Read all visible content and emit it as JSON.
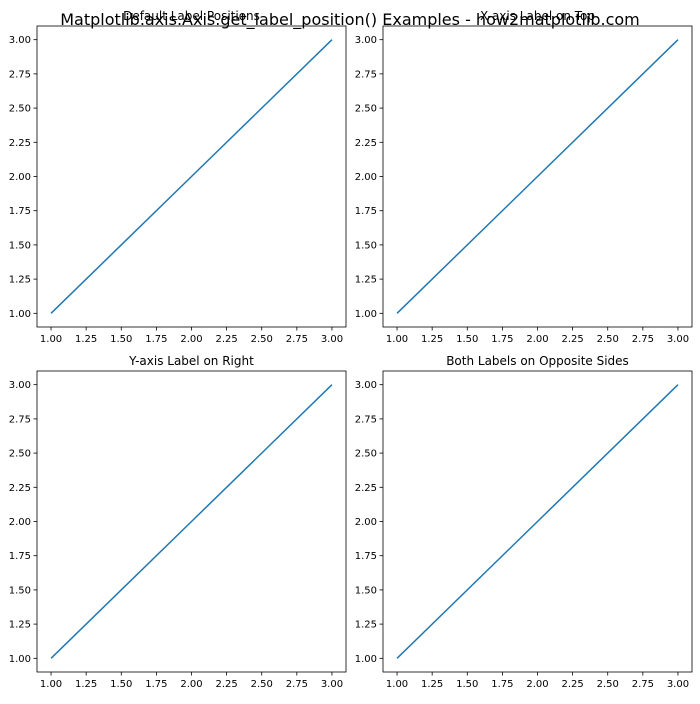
{
  "figure": {
    "suptitle": "Matplotlib.axis.Axis.get_label_position() Examples - how2matplotlib.com"
  },
  "chart_data": [
    {
      "type": "line",
      "title": "Default Label Positions",
      "x": [
        1,
        2,
        3
      ],
      "series": [
        {
          "values": [
            1,
            2,
            3
          ],
          "color": "#1f77b4"
        }
      ],
      "xlim": [
        0.9,
        3.1
      ],
      "ylim": [
        0.9,
        3.1
      ],
      "xticks": [
        1.0,
        1.25,
        1.5,
        1.75,
        2.0,
        2.25,
        2.5,
        2.75,
        3.0
      ],
      "yticks": [
        1.0,
        1.25,
        1.5,
        1.75,
        2.0,
        2.25,
        2.5,
        2.75,
        3.0
      ],
      "xticklabels": [
        "1.00",
        "1.25",
        "1.50",
        "1.75",
        "2.00",
        "2.25",
        "2.50",
        "2.75",
        "3.00"
      ],
      "yticklabels": [
        "1.00",
        "1.25",
        "1.50",
        "1.75",
        "2.00",
        "2.25",
        "2.50",
        "2.75",
        "3.00"
      ],
      "grid": false
    },
    {
      "type": "line",
      "title": "X-axis Label on Top",
      "x": [
        1,
        2,
        3
      ],
      "series": [
        {
          "values": [
            1,
            2,
            3
          ],
          "color": "#1f77b4"
        }
      ],
      "xlim": [
        0.9,
        3.1
      ],
      "ylim": [
        0.9,
        3.1
      ],
      "xticks": [
        1.0,
        1.25,
        1.5,
        1.75,
        2.0,
        2.25,
        2.5,
        2.75,
        3.0
      ],
      "yticks": [
        1.0,
        1.25,
        1.5,
        1.75,
        2.0,
        2.25,
        2.5,
        2.75,
        3.0
      ],
      "xticklabels": [
        "1.00",
        "1.25",
        "1.50",
        "1.75",
        "2.00",
        "2.25",
        "2.50",
        "2.75",
        "3.00"
      ],
      "yticklabels": [
        "1.00",
        "1.25",
        "1.50",
        "1.75",
        "2.00",
        "2.25",
        "2.50",
        "2.75",
        "3.00"
      ],
      "grid": false
    },
    {
      "type": "line",
      "title": "Y-axis Label on Right",
      "x": [
        1,
        2,
        3
      ],
      "series": [
        {
          "values": [
            1,
            2,
            3
          ],
          "color": "#1f77b4"
        }
      ],
      "xlim": [
        0.9,
        3.1
      ],
      "ylim": [
        0.9,
        3.1
      ],
      "xticks": [
        1.0,
        1.25,
        1.5,
        1.75,
        2.0,
        2.25,
        2.5,
        2.75,
        3.0
      ],
      "yticks": [
        1.0,
        1.25,
        1.5,
        1.75,
        2.0,
        2.25,
        2.5,
        2.75,
        3.0
      ],
      "xticklabels": [
        "1.00",
        "1.25",
        "1.50",
        "1.75",
        "2.00",
        "2.25",
        "2.50",
        "2.75",
        "3.00"
      ],
      "yticklabels": [
        "1.00",
        "1.25",
        "1.50",
        "1.75",
        "2.00",
        "2.25",
        "2.50",
        "2.75",
        "3.00"
      ],
      "grid": false
    },
    {
      "type": "line",
      "title": "Both Labels on Opposite Sides",
      "x": [
        1,
        2,
        3
      ],
      "series": [
        {
          "values": [
            1,
            2,
            3
          ],
          "color": "#1f77b4"
        }
      ],
      "xlim": [
        0.9,
        3.1
      ],
      "ylim": [
        0.9,
        3.1
      ],
      "xticks": [
        1.0,
        1.25,
        1.5,
        1.75,
        2.0,
        2.25,
        2.5,
        2.75,
        3.0
      ],
      "yticks": [
        1.0,
        1.25,
        1.5,
        1.75,
        2.0,
        2.25,
        2.5,
        2.75,
        3.0
      ],
      "xticklabels": [
        "1.00",
        "1.25",
        "1.50",
        "1.75",
        "2.00",
        "2.25",
        "2.50",
        "2.75",
        "3.00"
      ],
      "yticklabels": [
        "1.00",
        "1.25",
        "1.50",
        "1.75",
        "2.00",
        "2.25",
        "2.50",
        "2.75",
        "3.00"
      ],
      "grid": false
    }
  ]
}
